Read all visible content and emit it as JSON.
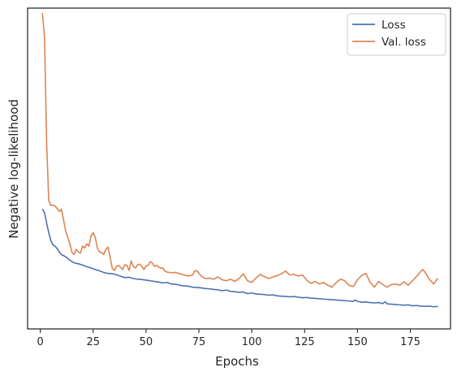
{
  "chart_data": {
    "type": "line",
    "title": "",
    "xlabel": "Epochs",
    "ylabel": "Negative log-likelihood",
    "xlim": [
      -6,
      194
    ],
    "ylim": [
      0,
      1
    ],
    "xticks": [
      0,
      25,
      50,
      75,
      100,
      125,
      150,
      175
    ],
    "yticks_shown": false,
    "grid": false,
    "legend_position": "top-right",
    "series": [
      {
        "name": "Loss",
        "color": "#4c72b0",
        "x": [
          1,
          2,
          3,
          4,
          5,
          6,
          7,
          8,
          9,
          10,
          12,
          14,
          16,
          18,
          20,
          22,
          24,
          26,
          28,
          30,
          32,
          34,
          36,
          38,
          40,
          42,
          44,
          46,
          48,
          50,
          52,
          54,
          56,
          58,
          60,
          62,
          64,
          66,
          68,
          70,
          72,
          74,
          76,
          78,
          80,
          82,
          84,
          86,
          88,
          90,
          92,
          94,
          96,
          98,
          100,
          102,
          104,
          106,
          108,
          110,
          112,
          114,
          116,
          118,
          120,
          122,
          124,
          126,
          128,
          130,
          132,
          134,
          136,
          138,
          140,
          142,
          144,
          146,
          148,
          149,
          150,
          152,
          154,
          156,
          158,
          160,
          162,
          163,
          164,
          166,
          168,
          170,
          172,
          174,
          176,
          178,
          180,
          182,
          184,
          186,
          188
        ],
        "values": [
          0.374,
          0.362,
          0.33,
          0.3,
          0.275,
          0.262,
          0.258,
          0.25,
          0.24,
          0.232,
          0.225,
          0.214,
          0.206,
          0.203,
          0.199,
          0.194,
          0.19,
          0.185,
          0.181,
          0.176,
          0.173,
          0.172,
          0.169,
          0.164,
          0.16,
          0.161,
          0.157,
          0.155,
          0.154,
          0.152,
          0.15,
          0.148,
          0.146,
          0.143,
          0.145,
          0.14,
          0.139,
          0.136,
          0.134,
          0.133,
          0.13,
          0.129,
          0.128,
          0.126,
          0.125,
          0.123,
          0.122,
          0.119,
          0.121,
          0.117,
          0.116,
          0.114,
          0.115,
          0.11,
          0.112,
          0.109,
          0.108,
          0.107,
          0.105,
          0.106,
          0.103,
          0.102,
          0.101,
          0.1,
          0.101,
          0.099,
          0.097,
          0.098,
          0.096,
          0.095,
          0.094,
          0.093,
          0.092,
          0.091,
          0.09,
          0.089,
          0.088,
          0.087,
          0.086,
          0.09,
          0.086,
          0.083,
          0.084,
          0.082,
          0.081,
          0.082,
          0.079,
          0.085,
          0.078,
          0.077,
          0.076,
          0.075,
          0.074,
          0.075,
          0.072,
          0.073,
          0.071,
          0.07,
          0.071,
          0.069,
          0.07
        ]
      },
      {
        "name": "Val. loss",
        "color": "#dd8452",
        "x": [
          1,
          2,
          3,
          4,
          5,
          6,
          7,
          8,
          9,
          10,
          11,
          12,
          13,
          14,
          15,
          16,
          17,
          18,
          19,
          20,
          21,
          22,
          23,
          24,
          25,
          26,
          27,
          28,
          29,
          30,
          31,
          32,
          33,
          34,
          35,
          36,
          37,
          38,
          39,
          40,
          41,
          42,
          43,
          44,
          45,
          46,
          47,
          48,
          49,
          50,
          51,
          52,
          53,
          54,
          55,
          56,
          57,
          58,
          59,
          60,
          62,
          64,
          66,
          68,
          70,
          72,
          73,
          74,
          75,
          76,
          78,
          80,
          82,
          84,
          86,
          88,
          90,
          92,
          94,
          96,
          98,
          100,
          102,
          104,
          106,
          108,
          110,
          112,
          114,
          116,
          118,
          120,
          122,
          124,
          126,
          128,
          130,
          132,
          134,
          136,
          138,
          140,
          142,
          144,
          146,
          148,
          149,
          150,
          152,
          154,
          156,
          158,
          160,
          162,
          164,
          166,
          168,
          170,
          172,
          174,
          176,
          178,
          180,
          181,
          182,
          184,
          186,
          188
        ],
        "values": [
          0.985,
          0.91,
          0.58,
          0.4,
          0.385,
          0.386,
          0.383,
          0.375,
          0.366,
          0.373,
          0.34,
          0.305,
          0.285,
          0.265,
          0.238,
          0.232,
          0.248,
          0.24,
          0.236,
          0.258,
          0.252,
          0.265,
          0.258,
          0.29,
          0.3,
          0.285,
          0.252,
          0.24,
          0.238,
          0.232,
          0.248,
          0.255,
          0.225,
          0.19,
          0.182,
          0.195,
          0.198,
          0.192,
          0.185,
          0.2,
          0.198,
          0.182,
          0.212,
          0.195,
          0.19,
          0.2,
          0.202,
          0.195,
          0.185,
          0.197,
          0.198,
          0.21,
          0.205,
          0.195,
          0.198,
          0.193,
          0.189,
          0.19,
          0.18,
          0.177,
          0.175,
          0.176,
          0.172,
          0.168,
          0.165,
          0.168,
          0.18,
          0.182,
          0.174,
          0.165,
          0.157,
          0.158,
          0.155,
          0.162,
          0.153,
          0.15,
          0.155,
          0.148,
          0.157,
          0.172,
          0.15,
          0.145,
          0.158,
          0.17,
          0.163,
          0.157,
          0.162,
          0.166,
          0.172,
          0.18,
          0.168,
          0.17,
          0.165,
          0.168,
          0.152,
          0.142,
          0.148,
          0.14,
          0.145,
          0.136,
          0.13,
          0.145,
          0.155,
          0.15,
          0.136,
          0.132,
          0.142,
          0.153,
          0.167,
          0.173,
          0.145,
          0.13,
          0.148,
          0.138,
          0.13,
          0.138,
          0.14,
          0.136,
          0.147,
          0.136,
          0.15,
          0.164,
          0.18,
          0.185,
          0.176,
          0.155,
          0.14,
          0.158
        ]
      }
    ]
  }
}
